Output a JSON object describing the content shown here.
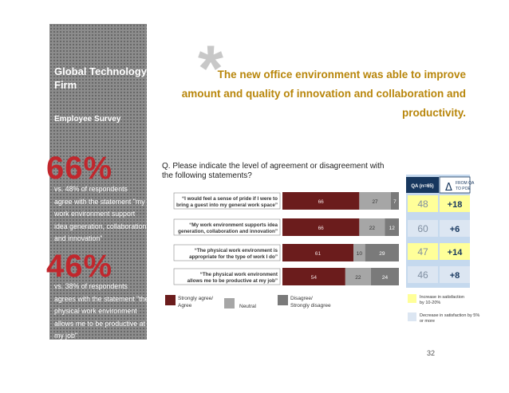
{
  "sidebar": {
    "title": "Global Technology Firm",
    "subtitle": "Employee Survey",
    "stat1": {
      "value": "66%",
      "text": "vs. 48% of respondents\nagree with the statement \"my\nwork environment support\nidea generation, collaboration\nand innovation\""
    },
    "stat2": {
      "value": "46%",
      "text": "vs. 38% of respondents\nagrees with the statement \"the\nphysical work environment\nallows me to be productive at\nmy job\""
    }
  },
  "headline": {
    "asterisk": "*",
    "text": "The new office environment was able to improve amount and quality of innovation and collaboration and productivity."
  },
  "question": "Q. Please indicate the level of agreement or disagreement with the following statements?",
  "page_number": "32",
  "colors": {
    "agree": "#6b1c1c",
    "neutral": "#a6a6a6",
    "disagree": "#7a7a7a",
    "increase": "#ffff99",
    "decrease": "#dce6f2",
    "sidebar": "#8c8c8c",
    "accent": "#b8860b",
    "big_number": "#c1272d"
  },
  "chart_data": {
    "type": "bar",
    "orientation": "horizontal",
    "stacked": true,
    "title": "Q. Please indicate the level of agreement or disagreement with the following statements?",
    "categories": [
      "\"I would feel a sense of pride if I were to bring a guest into my general work space\"",
      "\"My work environment supports idea generation, collaboration and innovation\"",
      "\"The physical work environment is appropriate for the type of work I do\"",
      "\"The physical work environment allows me to be productive at my job\""
    ],
    "series": [
      {
        "name": "Strongly agree/ Agree",
        "values": [
          66,
          66,
          61,
          54
        ]
      },
      {
        "name": "Neutral",
        "values": [
          27,
          22,
          10,
          22
        ]
      },
      {
        "name": "Disagree/ Strongly disagree",
        "values": [
          7,
          12,
          29,
          24
        ]
      }
    ],
    "xlim": [
      0,
      100
    ],
    "legend": [
      "Strongly agree/ Agree",
      "Neutral",
      "Disagree/ Strongly disagree"
    ],
    "comparison_table": {
      "headers": [
        "QA (n=65)",
        "Δ",
        "FROM QA TO POE"
      ],
      "qa_values": [
        "48",
        "60",
        "47",
        "46"
      ],
      "delta_values": [
        "+18",
        "+6",
        "+14",
        "+8"
      ],
      "highlight": [
        "increase",
        "decrease",
        "increase",
        "decrease"
      ]
    },
    "color_key": [
      {
        "label": "Increase in satisfaction by 10-20%",
        "type": "increase"
      },
      {
        "label": "Decrease in satisfaction by 5% or more",
        "type": "decrease"
      }
    ]
  }
}
